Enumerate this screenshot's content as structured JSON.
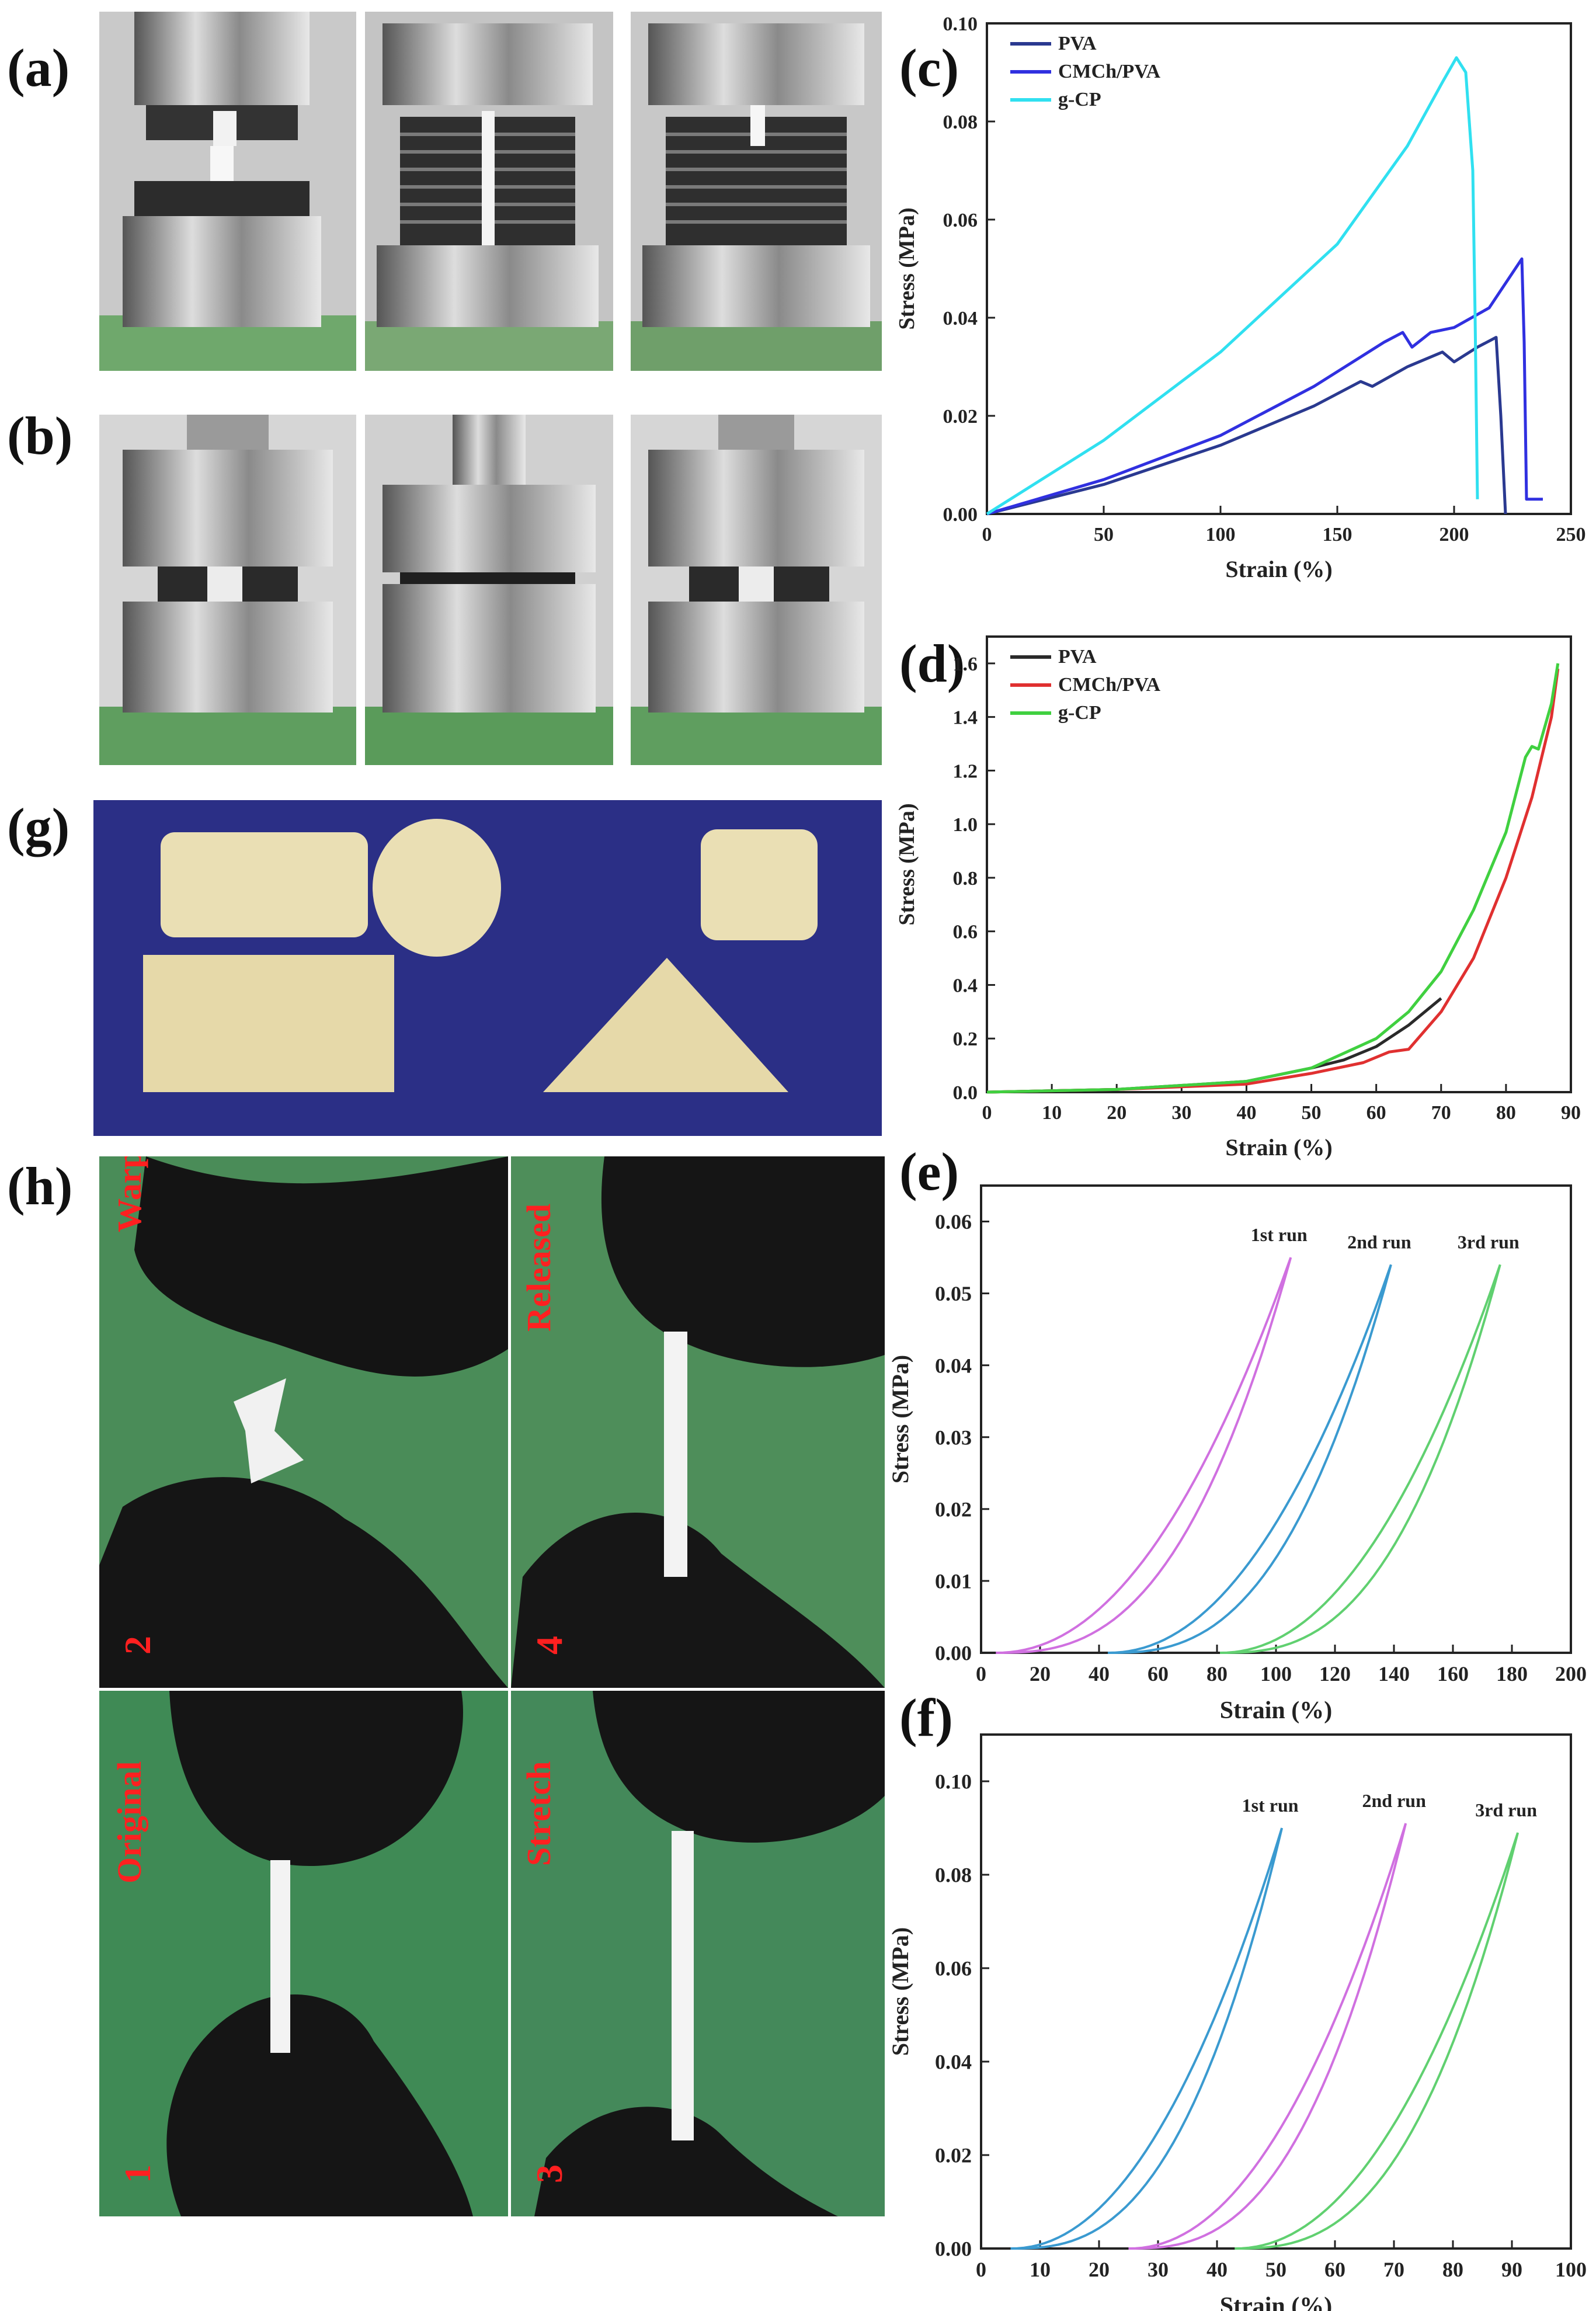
{
  "panels": {
    "a": "(a)",
    "b": "(b)",
    "c": "(c)",
    "d": "(d)",
    "e": "(e)",
    "f": "(f)",
    "g": "(g)",
    "h": "(h)"
  },
  "photos_h": {
    "tl": {
      "label": "Warp",
      "num": "2"
    },
    "tr": {
      "label": "Released",
      "num": "4"
    },
    "bl": {
      "label": "Original",
      "num": "1"
    },
    "br": {
      "label": "Stretch",
      "num": "3"
    }
  },
  "colors": {
    "pva_c": "#2a3990",
    "cmch_c": "#3030e0",
    "gcp_c": "#30e0f0",
    "pva_d": "#2a2a2a",
    "cmch_d": "#e03030",
    "gcp_d": "#40d040",
    "run_violet": "#d070e0",
    "run_blue": "#3a9ad0",
    "run_green": "#60d070",
    "bg_blue": "#2b2f86",
    "sample": "#eadfb4"
  },
  "chart_data": [
    {
      "id": "c",
      "type": "line",
      "xlabel": "Strain (%)",
      "ylabel": "Stress (MPa)",
      "xlim": [
        0,
        250
      ],
      "ylim": [
        0,
        0.1
      ],
      "xticks": [
        "0",
        "50",
        "100",
        "150",
        "200",
        "250"
      ],
      "yticks": [
        "0.00",
        "0.02",
        "0.04",
        "0.06",
        "0.08",
        "0.10"
      ],
      "legend": [
        "PVA",
        "CMCh/PVA",
        "g-CP"
      ],
      "series": [
        {
          "name": "PVA",
          "points": [
            [
              0,
              0
            ],
            [
              50,
              0.006
            ],
            [
              100,
              0.014
            ],
            [
              140,
              0.022
            ],
            [
              160,
              0.027
            ],
            [
              165,
              0.026
            ],
            [
              180,
              0.03
            ],
            [
              195,
              0.033
            ],
            [
              200,
              0.031
            ],
            [
              210,
              0.034
            ],
            [
              218,
              0.036
            ],
            [
              220,
              0.02
            ],
            [
              222,
              0.0
            ]
          ]
        },
        {
          "name": "CMCh/PVA",
          "points": [
            [
              0,
              0
            ],
            [
              50,
              0.007
            ],
            [
              100,
              0.016
            ],
            [
              140,
              0.026
            ],
            [
              160,
              0.032
            ],
            [
              170,
              0.035
            ],
            [
              178,
              0.037
            ],
            [
              182,
              0.034
            ],
            [
              190,
              0.037
            ],
            [
              200,
              0.038
            ],
            [
              215,
              0.042
            ],
            [
              229,
              0.052
            ],
            [
              230,
              0.035
            ],
            [
              231,
              0.003
            ],
            [
              238,
              0.003
            ]
          ]
        },
        {
          "name": "g-CP",
          "points": [
            [
              0,
              0
            ],
            [
              50,
              0.015
            ],
            [
              100,
              0.033
            ],
            [
              150,
              0.055
            ],
            [
              180,
              0.075
            ],
            [
              195,
              0.088
            ],
            [
              201,
              0.093
            ],
            [
              205,
              0.09
            ],
            [
              208,
              0.07
            ],
            [
              209,
              0.04
            ],
            [
              210,
              0.003
            ]
          ]
        }
      ]
    },
    {
      "id": "d",
      "type": "line",
      "xlabel": "Strain (%)",
      "ylabel": "Stress (MPa)",
      "xlim": [
        0,
        90
      ],
      "ylim": [
        0,
        1.7
      ],
      "xticks": [
        "0",
        "10",
        "20",
        "30",
        "40",
        "50",
        "60",
        "70",
        "80",
        "90"
      ],
      "yticks": [
        "0.0",
        "0.2",
        "0.4",
        "0.6",
        "0.8",
        "1.0",
        "1.2",
        "1.4",
        "1.6"
      ],
      "legend": [
        "PVA",
        "CMCh/PVA",
        "g-CP"
      ],
      "series": [
        {
          "name": "PVA",
          "points": [
            [
              0,
              0
            ],
            [
              20,
              0.01
            ],
            [
              40,
              0.04
            ],
            [
              50,
              0.09
            ],
            [
              55,
              0.12
            ],
            [
              60,
              0.17
            ],
            [
              65,
              0.25
            ],
            [
              70,
              0.35
            ]
          ]
        },
        {
          "name": "CMCh/PVA",
          "points": [
            [
              0,
              0
            ],
            [
              20,
              0.01
            ],
            [
              40,
              0.03
            ],
            [
              50,
              0.07
            ],
            [
              58,
              0.11
            ],
            [
              62,
              0.15
            ],
            [
              65,
              0.16
            ],
            [
              70,
              0.3
            ],
            [
              75,
              0.5
            ],
            [
              80,
              0.8
            ],
            [
              84,
              1.1
            ],
            [
              87,
              1.4
            ],
            [
              88,
              1.58
            ]
          ]
        },
        {
          "name": "g-CP",
          "points": [
            [
              0,
              0
            ],
            [
              20,
              0.01
            ],
            [
              40,
              0.04
            ],
            [
              50,
              0.09
            ],
            [
              60,
              0.2
            ],
            [
              65,
              0.3
            ],
            [
              70,
              0.45
            ],
            [
              75,
              0.68
            ],
            [
              80,
              0.97
            ],
            [
              83,
              1.25
            ],
            [
              84,
              1.29
            ],
            [
              85,
              1.28
            ],
            [
              87,
              1.45
            ],
            [
              88,
              1.6
            ]
          ]
        }
      ]
    },
    {
      "id": "e",
      "type": "line",
      "xlabel": "Strain (%)",
      "ylabel": "Stress (MPa)",
      "xlim": [
        0,
        200
      ],
      "ylim": [
        0,
        0.065
      ],
      "xticks": [
        "0",
        "20",
        "40",
        "60",
        "80",
        "100",
        "120",
        "140",
        "160",
        "180",
        "200"
      ],
      "yticks": [
        "0.00",
        "0.01",
        "0.02",
        "0.03",
        "0.04",
        "0.05",
        "0.06"
      ],
      "annotations": [
        "1st run",
        "2nd run",
        "3rd run"
      ],
      "series": [
        {
          "name": "1st run",
          "start": 5,
          "end": 105,
          "peak": 0.055
        },
        {
          "name": "2nd run",
          "start": 43,
          "end": 139,
          "peak": 0.054
        },
        {
          "name": "3rd run",
          "start": 81,
          "end": 176,
          "peak": 0.054
        }
      ]
    },
    {
      "id": "f",
      "type": "line",
      "xlabel": "Strain (%)",
      "ylabel": "Stress (MPa)",
      "xlim": [
        0,
        100
      ],
      "ylim": [
        0,
        0.11
      ],
      "xticks": [
        "0",
        "10",
        "20",
        "30",
        "40",
        "50",
        "60",
        "70",
        "80",
        "90",
        "100"
      ],
      "yticks": [
        "0.00",
        "0.02",
        "0.04",
        "0.06",
        "0.08",
        "0.10"
      ],
      "annotations": [
        "1st run",
        "2nd run",
        "3rd run"
      ],
      "series": [
        {
          "name": "1st run",
          "start": 5,
          "end": 51,
          "peak": 0.09
        },
        {
          "name": "2nd run",
          "start": 25,
          "end": 72,
          "peak": 0.091
        },
        {
          "name": "3rd run",
          "start": 43,
          "end": 91,
          "peak": 0.089
        }
      ]
    }
  ]
}
